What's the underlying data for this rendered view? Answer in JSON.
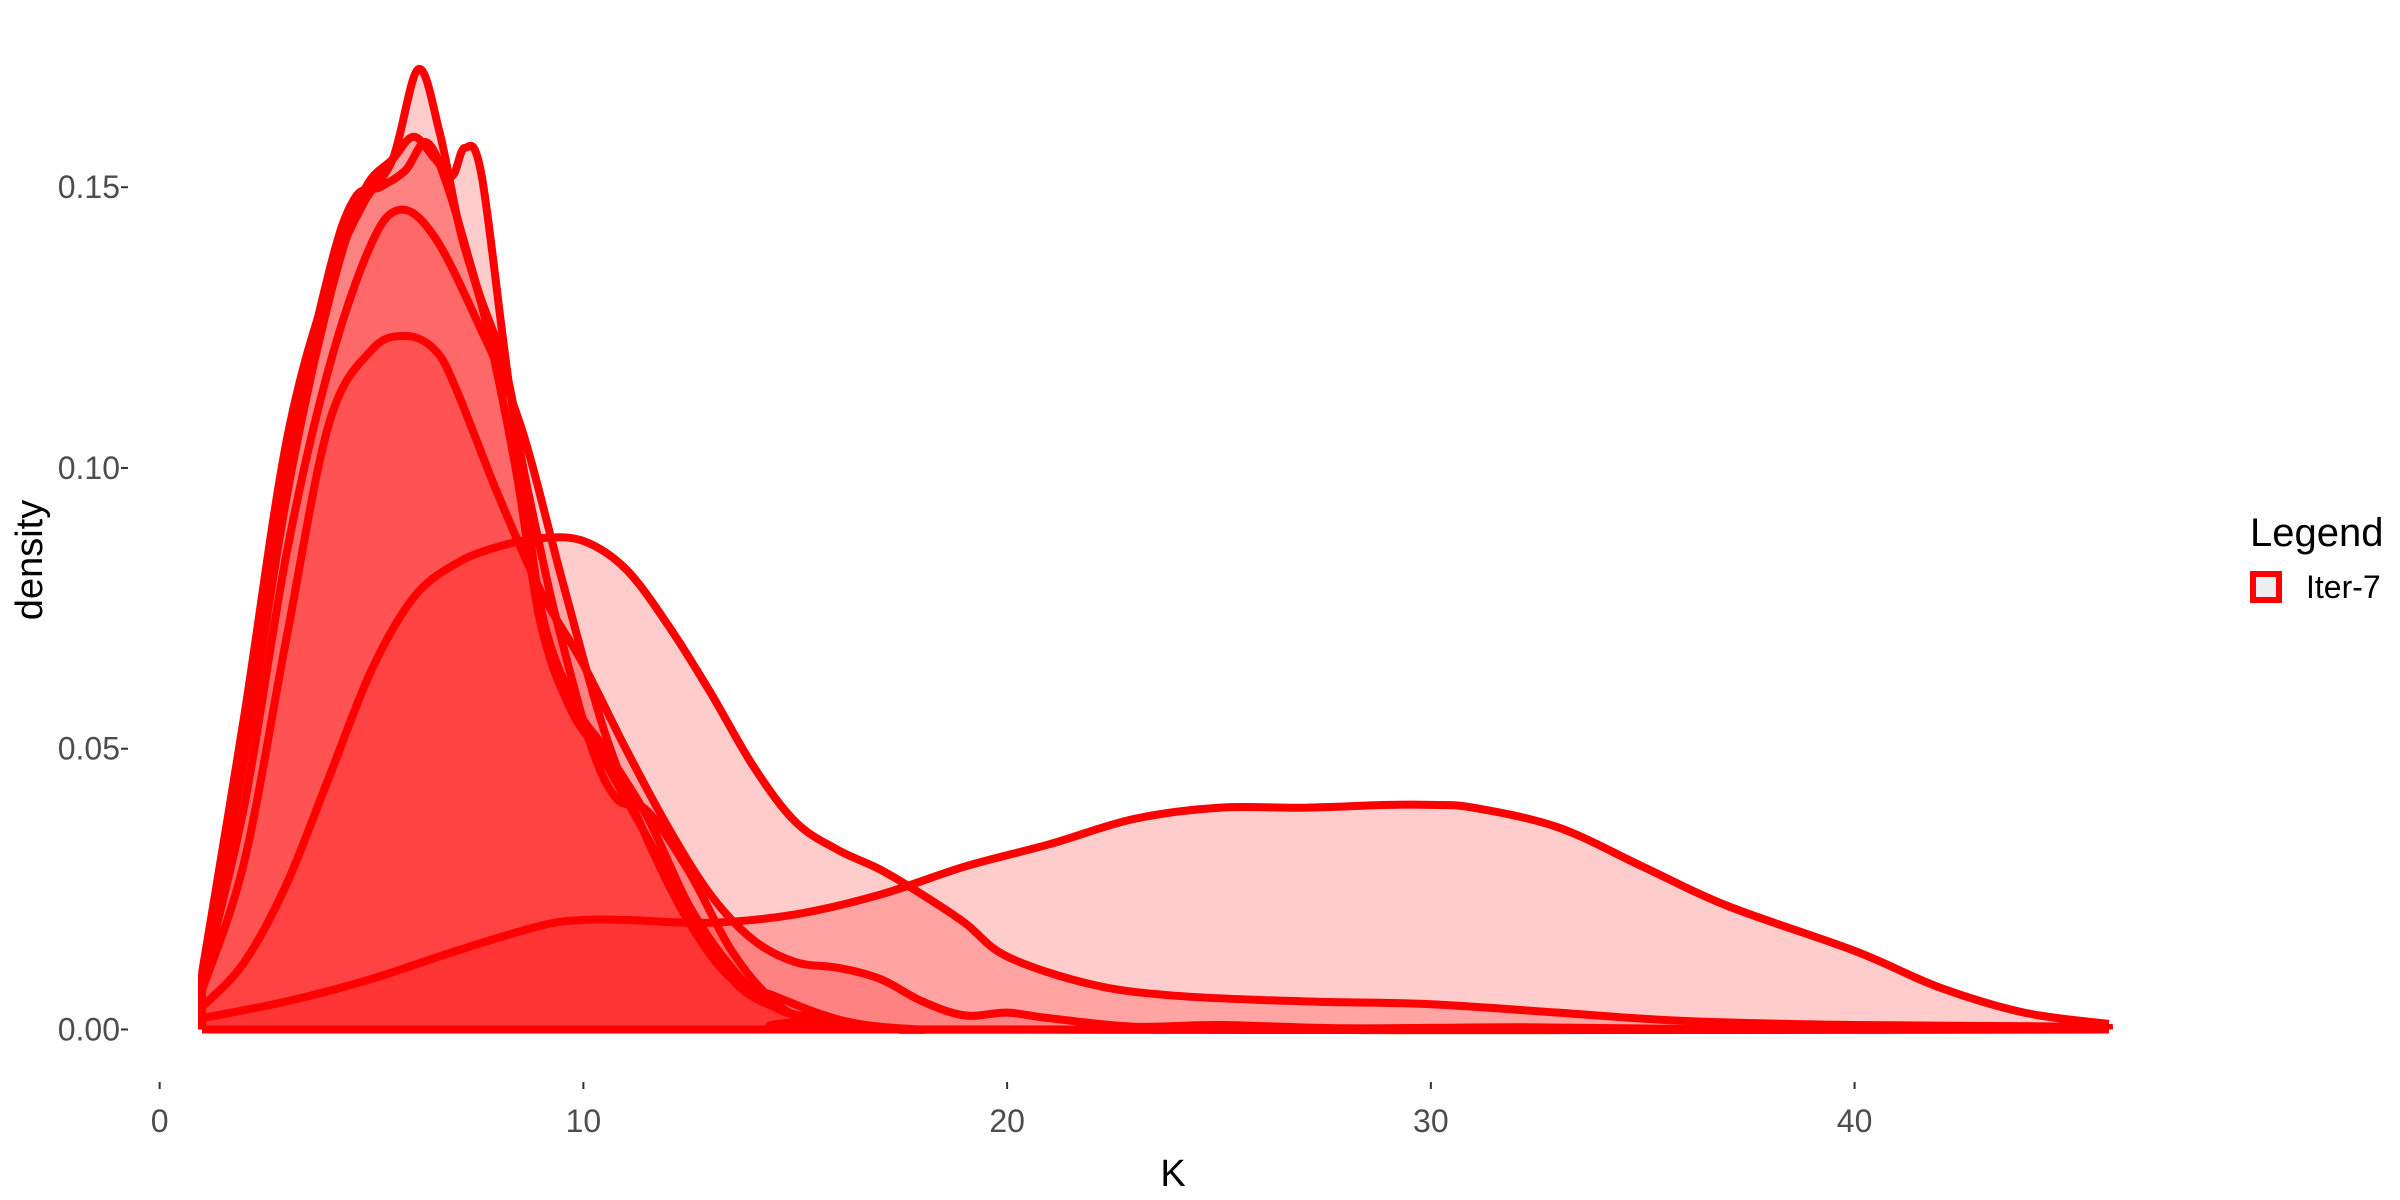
{
  "chart_data": {
    "type": "area",
    "title": "",
    "xlabel": "K",
    "ylabel": "density",
    "xlim": [
      -0.7,
      46.5
    ],
    "ylim": [
      -0.009,
      0.178
    ],
    "x_ticks": [
      {
        "value": 0,
        "label": "0"
      },
      {
        "value": 10,
        "label": "10"
      },
      {
        "value": 20,
        "label": "20"
      },
      {
        "value": 30,
        "label": "30"
      },
      {
        "value": 40,
        "label": "40"
      }
    ],
    "y_ticks": [
      {
        "value": 0.0,
        "label": "0.00"
      },
      {
        "value": 0.05,
        "label": "0.05"
      },
      {
        "value": 0.1,
        "label": "0.10"
      },
      {
        "value": 0.15,
        "label": "0.15"
      }
    ],
    "grid": false,
    "legend": {
      "title": "Legend",
      "position": "right",
      "entries": [
        "Iter-7"
      ]
    },
    "colors": {
      "line": "#ff0000",
      "fill": "#ff0000",
      "legend_fill": "#eeeeee"
    },
    "fill_opacity": 0.2,
    "series": [
      {
        "points": [
          [
            1,
            0.002
          ],
          [
            3,
            0.005
          ],
          [
            5,
            0.009
          ],
          [
            7,
            0.014
          ],
          [
            9,
            0.0185
          ],
          [
            10,
            0.0195
          ],
          [
            11,
            0.0195
          ],
          [
            13,
            0.019
          ],
          [
            15,
            0.0205
          ],
          [
            17,
            0.024
          ],
          [
            19,
            0.029
          ],
          [
            21,
            0.033
          ],
          [
            23,
            0.0375
          ],
          [
            25,
            0.0395
          ],
          [
            27,
            0.0395
          ],
          [
            29,
            0.04
          ],
          [
            30,
            0.04
          ],
          [
            31,
            0.0395
          ],
          [
            33,
            0.036
          ],
          [
            35,
            0.029
          ],
          [
            37,
            0.022
          ],
          [
            40,
            0.014
          ],
          [
            42,
            0.0075
          ],
          [
            44,
            0.003
          ],
          [
            46,
            0.001
          ]
        ]
      },
      {
        "points": [
          [
            1,
            0.004
          ],
          [
            2,
            0.012
          ],
          [
            3,
            0.026
          ],
          [
            4,
            0.045
          ],
          [
            5,
            0.064
          ],
          [
            6,
            0.077
          ],
          [
            7,
            0.083
          ],
          [
            8,
            0.086
          ],
          [
            9,
            0.0875
          ],
          [
            10,
            0.087
          ],
          [
            11,
            0.082
          ],
          [
            12,
            0.072
          ],
          [
            13,
            0.06
          ],
          [
            14,
            0.047
          ],
          [
            15,
            0.037
          ],
          [
            16,
            0.032
          ],
          [
            17,
            0.0285
          ],
          [
            18,
            0.024
          ],
          [
            19,
            0.019
          ],
          [
            20,
            0.013
          ],
          [
            22,
            0.008
          ],
          [
            24,
            0.006
          ],
          [
            27,
            0.005
          ],
          [
            30,
            0.0045
          ],
          [
            33,
            0.003
          ],
          [
            36,
            0.0015
          ],
          [
            40,
            0.0008
          ],
          [
            46,
            0.0005
          ]
        ]
      },
      {
        "points": [
          [
            1,
            0.007
          ],
          [
            2,
            0.03
          ],
          [
            3,
            0.07
          ],
          [
            4,
            0.108
          ],
          [
            5,
            0.121
          ],
          [
            5.8,
            0.1235
          ],
          [
            6.5,
            0.121
          ],
          [
            7,
            0.114
          ],
          [
            8,
            0.095
          ],
          [
            9,
            0.078
          ],
          [
            10,
            0.065
          ],
          [
            11,
            0.05
          ],
          [
            12,
            0.036
          ],
          [
            13,
            0.024
          ],
          [
            14,
            0.016
          ],
          [
            15,
            0.012
          ],
          [
            16,
            0.011
          ],
          [
            17,
            0.009
          ],
          [
            18,
            0.005
          ],
          [
            19,
            0.0025
          ],
          [
            20,
            0.003
          ],
          [
            21,
            0.002
          ],
          [
            23,
            0.0005
          ],
          [
            25,
            0.0008
          ],
          [
            28,
            0.0002
          ],
          [
            32,
            0.0004
          ],
          [
            36,
            0.0001
          ],
          [
            40,
            0.0001
          ],
          [
            46,
            0.0005
          ]
        ]
      },
      {
        "points": [
          [
            1,
            0.008
          ],
          [
            2,
            0.04
          ],
          [
            3,
            0.085
          ],
          [
            4,
            0.118
          ],
          [
            5,
            0.14
          ],
          [
            5.7,
            0.146
          ],
          [
            6.5,
            0.141
          ],
          [
            7.5,
            0.126
          ],
          [
            8.5,
            0.108
          ],
          [
            9.5,
            0.08
          ],
          [
            10.5,
            0.053
          ],
          [
            11.5,
            0.034
          ],
          [
            12.5,
            0.019
          ],
          [
            13.5,
            0.009
          ],
          [
            14.5,
            0.006
          ],
          [
            15.5,
            0.003
          ],
          [
            16.5,
            0.001
          ],
          [
            18,
            0.0
          ],
          [
            20,
            0.0
          ],
          [
            46,
            0.0
          ]
        ]
      },
      {
        "points": [
          [
            1,
            0.009
          ],
          [
            2,
            0.05
          ],
          [
            3,
            0.1
          ],
          [
            4,
            0.135
          ],
          [
            4.6,
            0.148
          ],
          [
            5.2,
            0.15
          ],
          [
            5.8,
            0.153
          ],
          [
            6.3,
            0.158
          ],
          [
            6.8,
            0.15
          ],
          [
            7.5,
            0.132
          ],
          [
            8.3,
            0.113
          ],
          [
            9,
            0.075
          ],
          [
            9.8,
            0.058
          ],
          [
            10.5,
            0.05
          ],
          [
            11.5,
            0.038
          ],
          [
            12.5,
            0.022
          ],
          [
            13.5,
            0.011
          ],
          [
            14.5,
            0.004
          ],
          [
            15.5,
            0.002
          ],
          [
            17,
            0.0
          ],
          [
            46,
            0.0
          ]
        ]
      },
      {
        "points": [
          [
            1,
            0.01
          ],
          [
            2,
            0.056
          ],
          [
            3,
            0.105
          ],
          [
            4,
            0.133
          ],
          [
            4.8,
            0.147
          ],
          [
            5.5,
            0.155
          ],
          [
            6.1,
            0.171
          ],
          [
            6.6,
            0.16
          ],
          [
            7.1,
            0.142
          ],
          [
            7.7,
            0.126
          ],
          [
            8.4,
            0.1
          ],
          [
            9,
            0.072
          ],
          [
            9.7,
            0.057
          ],
          [
            10.4,
            0.049
          ],
          [
            11.3,
            0.037
          ],
          [
            12.5,
            0.021
          ],
          [
            13.5,
            0.009
          ],
          [
            14.5,
            0.004
          ],
          [
            16,
            0.001
          ],
          [
            18,
            0.0
          ],
          [
            46,
            0.0
          ]
        ]
      },
      {
        "points": [
          [
            1,
            0.009
          ],
          [
            2,
            0.048
          ],
          [
            3,
            0.095
          ],
          [
            4,
            0.13
          ],
          [
            4.8,
            0.149
          ],
          [
            5.5,
            0.155
          ],
          [
            6,
            0.159
          ],
          [
            6.5,
            0.155
          ],
          [
            6.9,
            0.152
          ],
          [
            7.2,
            0.157
          ],
          [
            7.6,
            0.152
          ],
          [
            8.3,
            0.112
          ],
          [
            9,
            0.085
          ],
          [
            9.5,
            0.069
          ],
          [
            10.2,
            0.05
          ],
          [
            10.8,
            0.041
          ],
          [
            11.5,
            0.039
          ],
          [
            12.5,
            0.028
          ],
          [
            13.5,
            0.014
          ],
          [
            14.5,
            0.005
          ],
          [
            15.5,
            0.001
          ],
          [
            17,
            0.0
          ],
          [
            46,
            0.0
          ]
        ]
      }
    ]
  }
}
